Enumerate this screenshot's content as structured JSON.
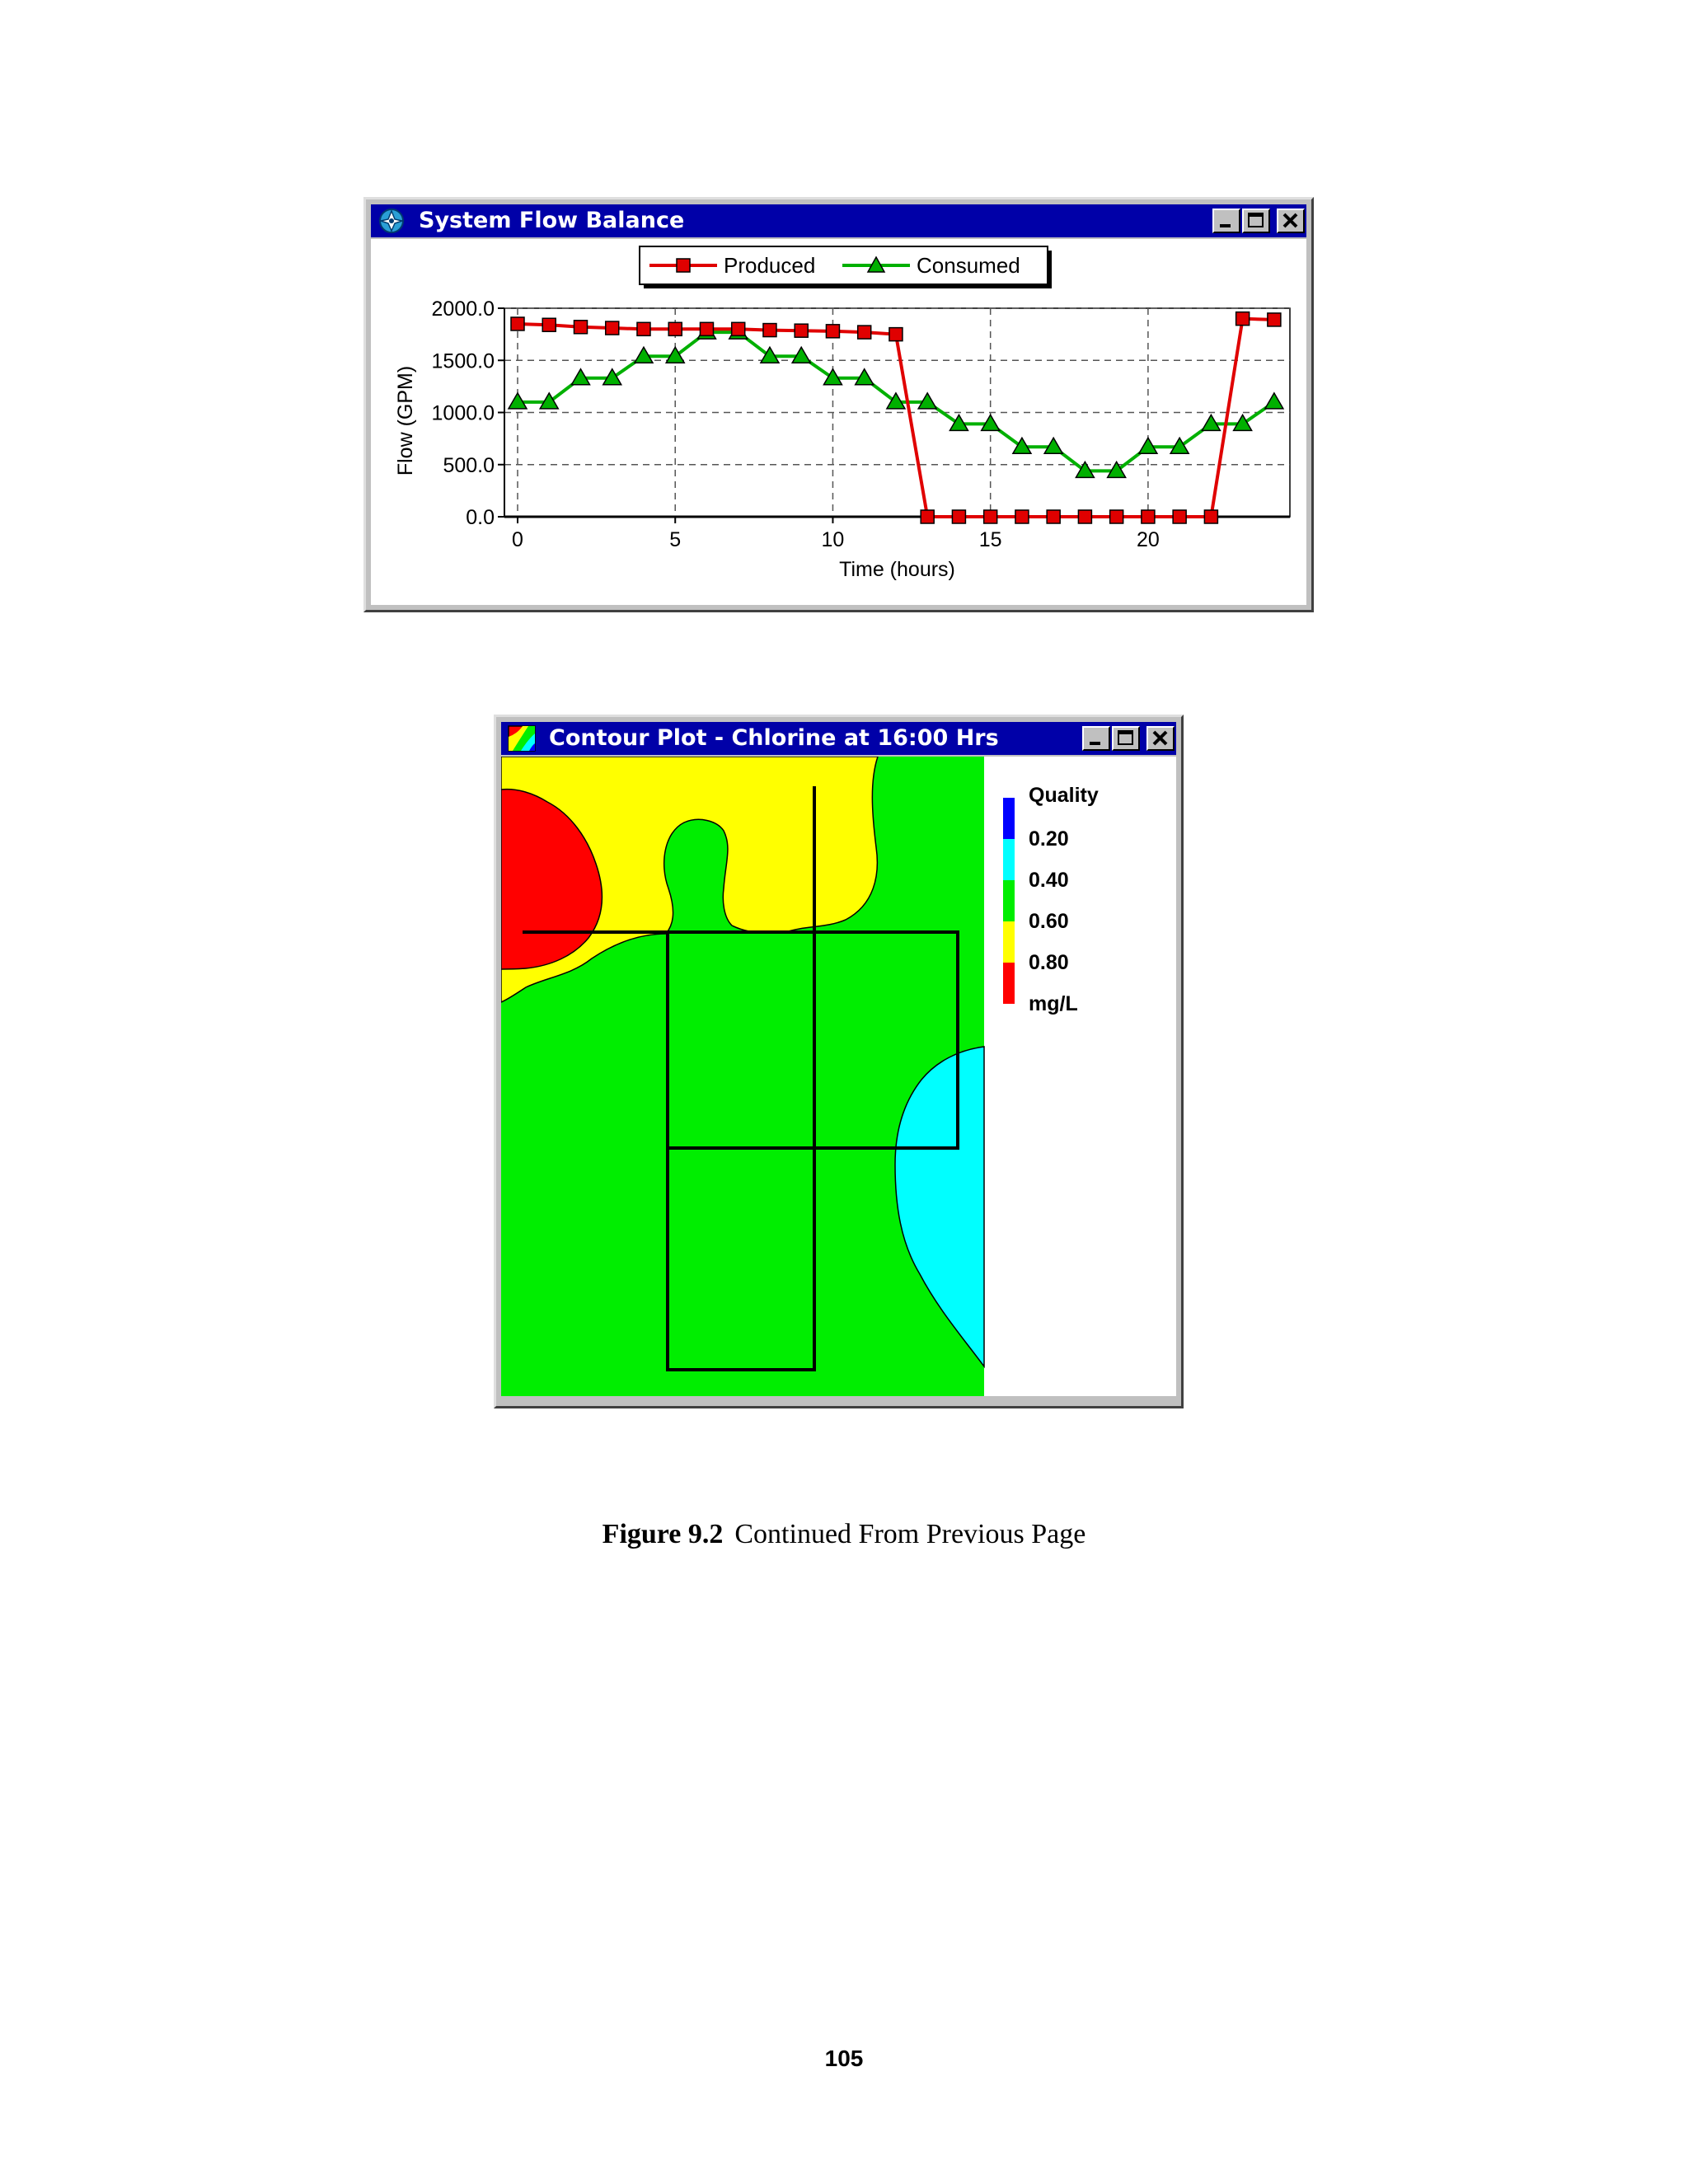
{
  "flow_window": {
    "title": "System Flow Balance",
    "icon": "epanet-app-icon"
  },
  "contour_window": {
    "title": "Contour Plot - Chlorine at 16:00 Hrs",
    "icon": "contour-app-icon"
  },
  "window_controls": {
    "minimize": "minimize-icon",
    "maximize": "maximize-icon",
    "close": "close-icon"
  },
  "legend": {
    "title": "Quality",
    "values": [
      "0.20",
      "0.40",
      "0.60",
      "0.80"
    ],
    "units": "mg/L",
    "colors": [
      "#0000ff",
      "#00ffff",
      "#00ee00",
      "#ffff00",
      "#ff0000"
    ]
  },
  "chart_data": [
    {
      "type": "line",
      "title": "",
      "xlabel": "Time (hours)",
      "ylabel": "Flow (GPM)",
      "xlim": [
        0,
        24.5
      ],
      "ylim": [
        0,
        2000
      ],
      "xticks": [
        0,
        5,
        10,
        15,
        20
      ],
      "yticks": [
        "0.0",
        "500.0",
        "1000.0",
        "1500.0",
        "2000.0"
      ],
      "grid": true,
      "legend_position": "top",
      "x": [
        0,
        1,
        2,
        3,
        4,
        5,
        6,
        7,
        8,
        9,
        10,
        11,
        12,
        13,
        14,
        15,
        16,
        17,
        18,
        19,
        20,
        21,
        22,
        23,
        24
      ],
      "series": [
        {
          "name": "Produced",
          "color": "#e00000",
          "marker": "square",
          "values": [
            1850,
            1840,
            1820,
            1810,
            1800,
            1800,
            1800,
            1800,
            1790,
            1785,
            1780,
            1770,
            1750,
            0,
            0,
            0,
            0,
            0,
            0,
            0,
            0,
            0,
            0,
            1900,
            1890
          ]
        },
        {
          "name": "Consumed",
          "color": "#00b000",
          "marker": "triangle",
          "values": [
            1100,
            1100,
            1330,
            1330,
            1540,
            1540,
            1770,
            1770,
            1540,
            1540,
            1330,
            1330,
            1100,
            1100,
            890,
            890,
            670,
            670,
            440,
            440,
            670,
            670,
            890,
            890,
            1100
          ]
        }
      ]
    }
  ],
  "caption": {
    "label": "Figure 9.2",
    "text": "Continued From Previous Page"
  },
  "page_number": "105"
}
